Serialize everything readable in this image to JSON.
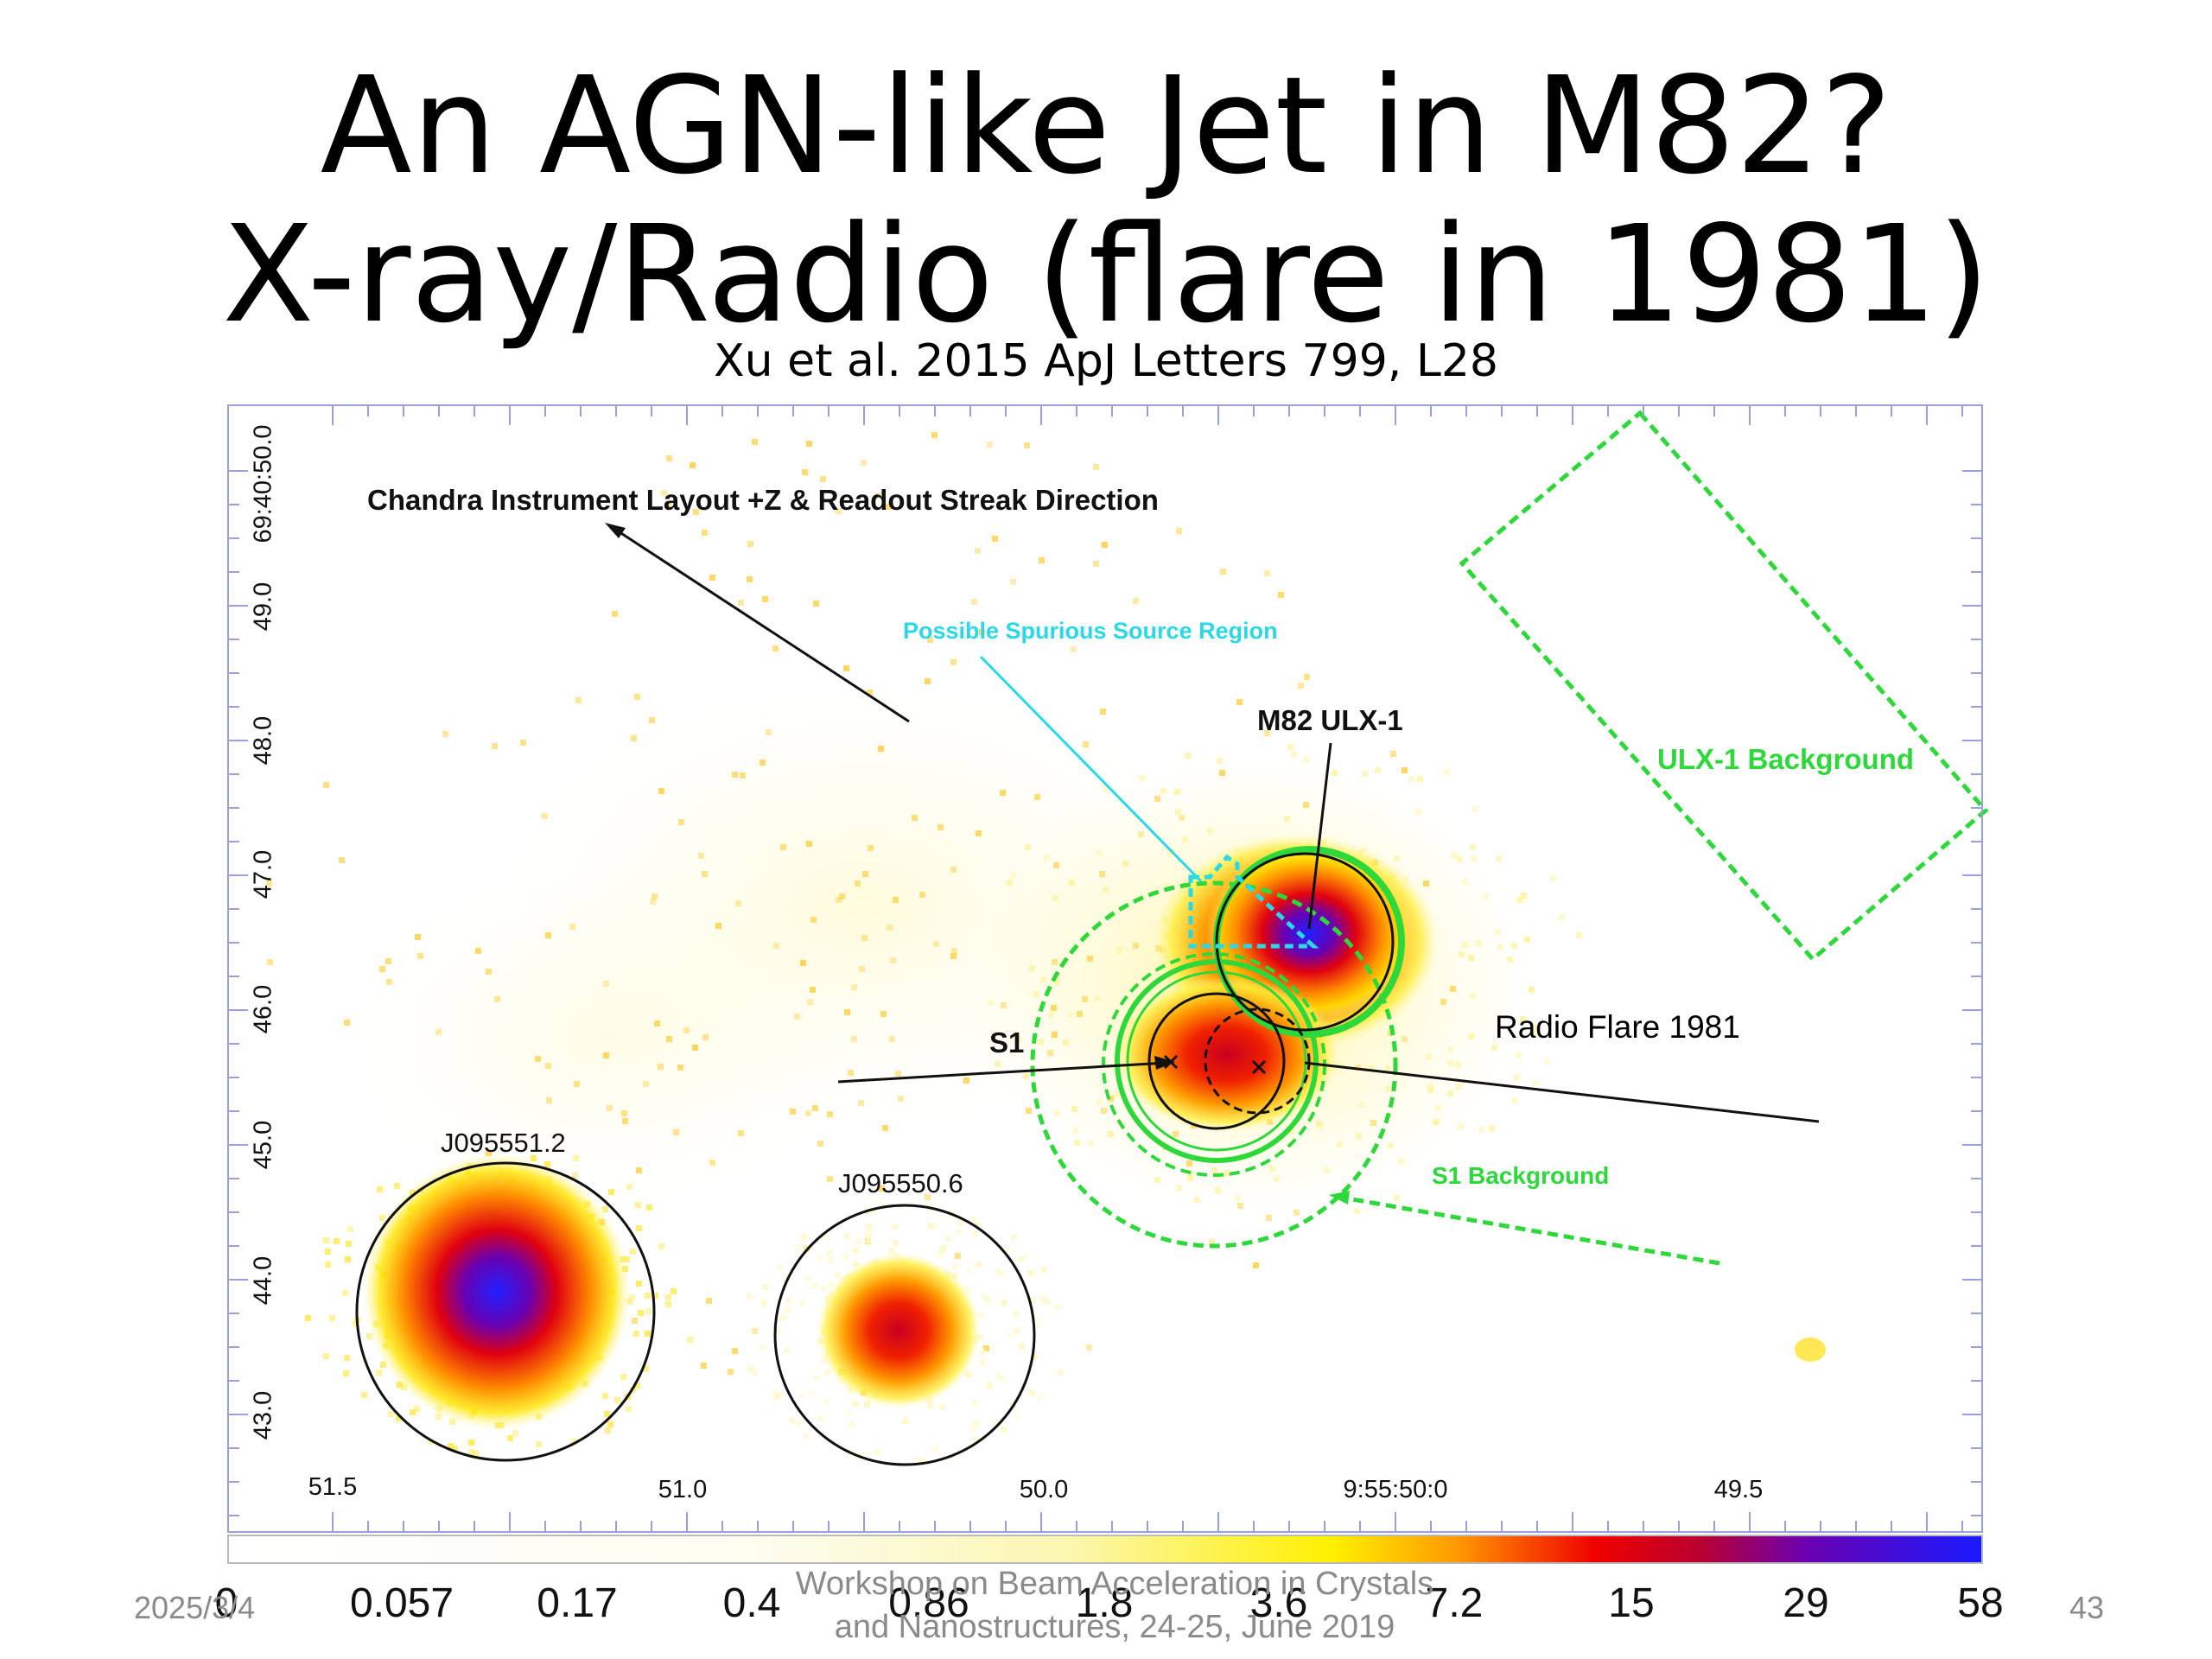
{
  "slide": {
    "title_line1": "An AGN-like Jet in M82?",
    "title_line2": "X-ray/Radio (flare in 1981)",
    "citation": "Xu et al. 2015 ApJ Letters 799, L28"
  },
  "figure": {
    "labels": {
      "chandra_layout": "Chandra Instrument Layout +Z & Readout Streak Direction",
      "spurious_region": "Possible Spurious Source Region",
      "m82_ulx1": "M82 ULX-1",
      "ulx1_background": "ULX-1 Background",
      "s1": "S1",
      "s1_background": "S1 Background",
      "radio_flare": "Radio Flare 1981",
      "source_j095551": "J095551.2",
      "source_j095550": "J095550.6"
    },
    "y_axis_ticks": [
      "69:40:50.0",
      "49.0",
      "48.0",
      "47.0",
      "46.0",
      "45.0",
      "44.0",
      "43.0"
    ],
    "x_axis_ticks": [
      "51.5",
      "51.0",
      "50.0",
      "9:55:50:0",
      "49.5"
    ],
    "colorbar_ticks": [
      "0",
      "0.057",
      "0.17",
      "0.4",
      "0.86",
      "1.8",
      "3.6",
      "7.2",
      "15",
      "29",
      "58"
    ],
    "colors": {
      "region_green": "#2fd83a",
      "spurious_cyan": "#2ad8e6",
      "frame": "#9aa0d8",
      "high_counts": "#1a1aff",
      "mid_counts": "#f00000",
      "low_counts": "#fff000"
    }
  },
  "footer": {
    "date": "2025/3/4",
    "event_line1": "Workshop on Beam Acceleration in Crystals",
    "event_line2": "and Nanostructures, 24-25, June 2019",
    "page_number": "43"
  }
}
